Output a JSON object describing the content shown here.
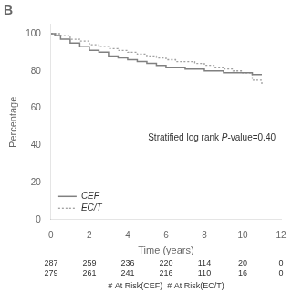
{
  "chart_data": {
    "type": "step",
    "title": "B",
    "xlabel": "Time (years)",
    "ylabel": "Percentage",
    "xlim": [
      0,
      12
    ],
    "ylim": [
      0,
      105
    ],
    "xticks": [
      0,
      2,
      4,
      6,
      8,
      10,
      12
    ],
    "yticks": [
      0,
      20,
      40,
      60,
      80,
      100
    ],
    "grid": false,
    "legend": "lower left",
    "series": [
      {
        "name": "CEF",
        "color": "#808080",
        "line_style": "solid",
        "x": [
          0,
          0.2,
          0.5,
          1.0,
          1.5,
          2.0,
          2.5,
          3.0,
          3.5,
          4.0,
          4.5,
          5.0,
          5.5,
          6.0,
          6.5,
          7.0,
          7.5,
          8.0,
          8.5,
          9.0,
          9.5,
          10.0,
          10.5,
          11.0
        ],
        "values": [
          100,
          99,
          97,
          95,
          93,
          91,
          90,
          88,
          87,
          86,
          85,
          84,
          83,
          82,
          82,
          81,
          81,
          80,
          80,
          79,
          79,
          79,
          78,
          78
        ]
      },
      {
        "name": "EC/T",
        "color": "#a0a0a0",
        "line_style": "dotted",
        "x": [
          0,
          0.2,
          0.5,
          1.0,
          1.5,
          2.0,
          2.5,
          3.0,
          3.5,
          4.0,
          4.5,
          5.0,
          5.5,
          6.0,
          6.5,
          7.0,
          7.5,
          8.0,
          8.5,
          9.0,
          9.5,
          10.0,
          10.5,
          11.0
        ],
        "values": [
          100,
          100,
          99,
          97,
          96,
          94,
          93,
          92,
          91,
          90,
          89,
          88,
          87,
          86,
          85,
          85,
          84,
          83,
          82,
          81,
          80,
          79,
          75,
          73
        ]
      }
    ],
    "annotation": [
      "Stratified log rank ",
      "P",
      "-value=0.40"
    ],
    "at_risk": {
      "times": [
        0,
        2,
        4,
        6,
        8,
        10,
        12
      ],
      "rows": [
        [
          287,
          259,
          236,
          220,
          114,
          20,
          0
        ],
        [
          279,
          261,
          241,
          216,
          110,
          16,
          0
        ]
      ],
      "label": "# At Risk(CEF)  # At Risk(EC/T)"
    }
  }
}
